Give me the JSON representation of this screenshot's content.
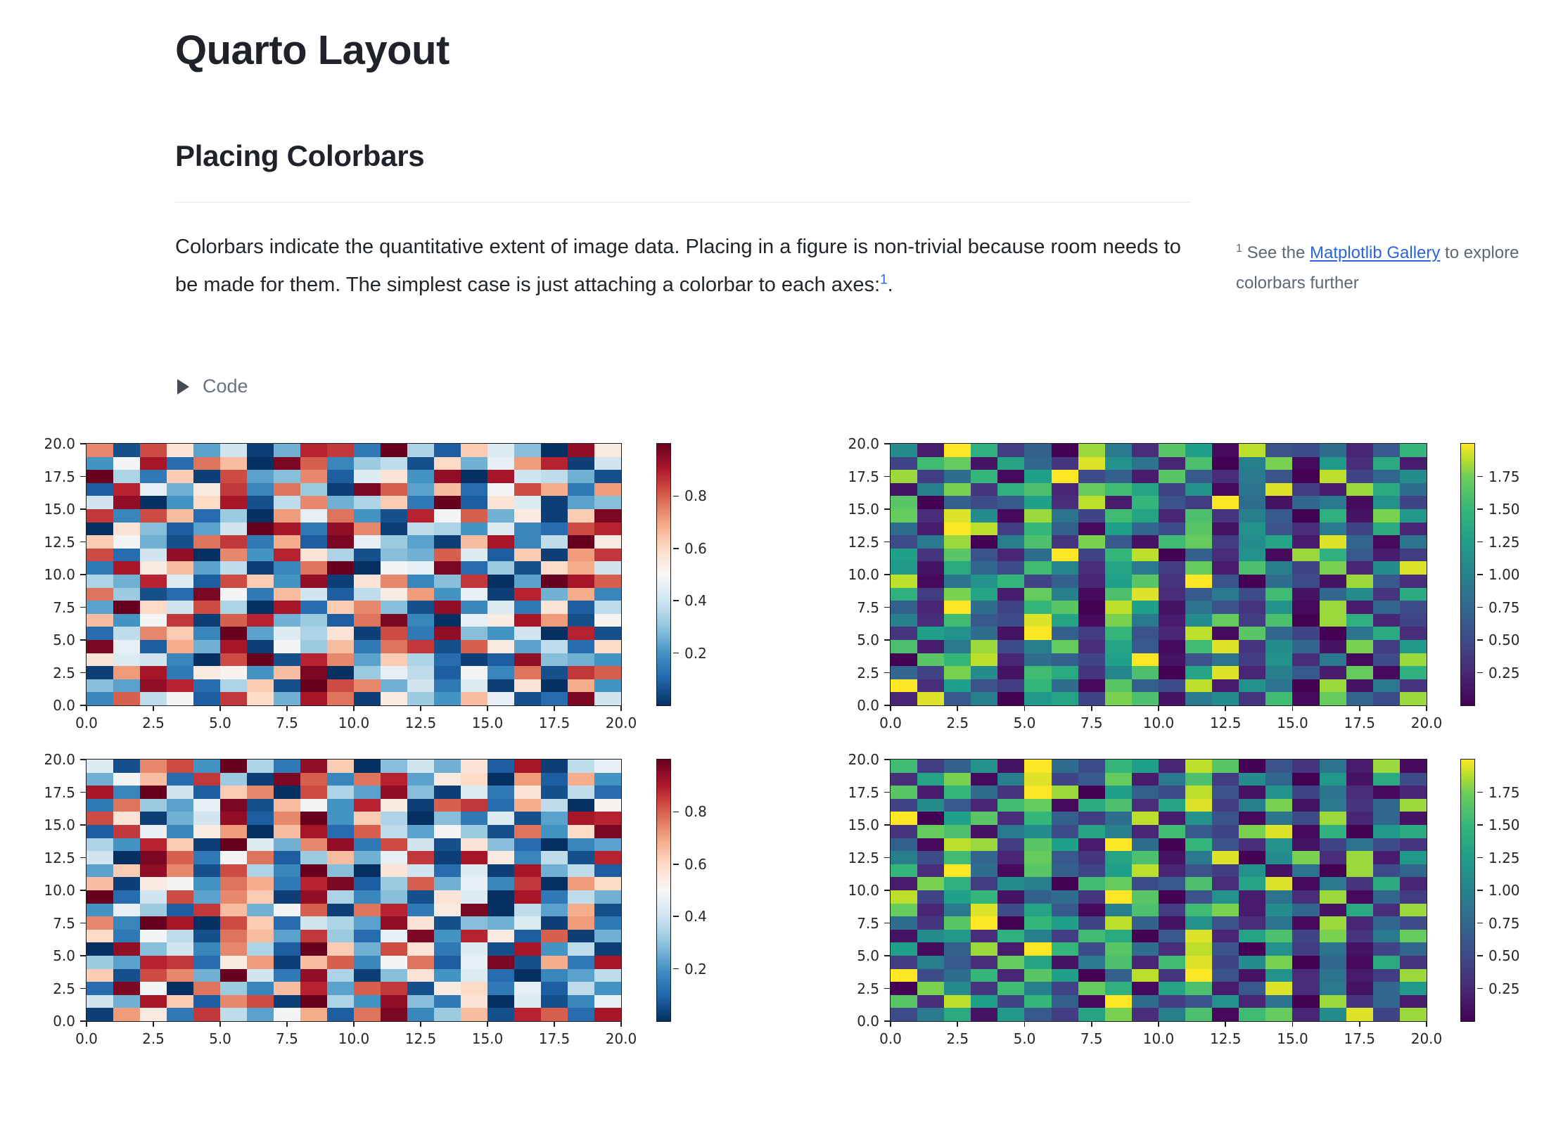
{
  "page": {
    "title": "Quarto Layout",
    "section_heading": "Placing Colorbars"
  },
  "paragraph": {
    "text": "Colorbars indicate the quantitative extent of image data. Placing in a figure is non-trivial because room needs to be made for them. The simplest case is just attaching a colorbar to each axes:",
    "footnote_ref": "1",
    "after_ref": "."
  },
  "margin_note": {
    "ref": "1",
    "text_before_link": " See the ",
    "link_text": "Matplotlib Gallery",
    "text_after_link": " to explore colorbars further"
  },
  "code_fold": {
    "label": "Code",
    "icon": "disclosure-triangle"
  },
  "colors": {
    "link_blue": "#2b65dd",
    "heading_text": "#1f2329",
    "body_text": "#21262b",
    "muted_text": "#5d6873",
    "code_fold_text": "#6a737b",
    "divider": "#e2e6ea",
    "axis_text": "#262626",
    "axis_line": "#1e1e1e"
  },
  "colormaps": {
    "RdBu_r": [
      [
        0,
        "#053061"
      ],
      [
        0.1,
        "#2166ac"
      ],
      [
        0.2,
        "#4393c3"
      ],
      [
        0.3,
        "#92c5de"
      ],
      [
        0.4,
        "#d1e5f0"
      ],
      [
        0.5,
        "#f7f7f7"
      ],
      [
        0.6,
        "#fddbc7"
      ],
      [
        0.7,
        "#f4a582"
      ],
      [
        0.8,
        "#d6604d"
      ],
      [
        0.9,
        "#b2182b"
      ],
      [
        1,
        "#67001f"
      ]
    ],
    "viridis": [
      [
        0,
        "#440154"
      ],
      [
        0.125,
        "#482878"
      ],
      [
        0.25,
        "#3e4a89"
      ],
      [
        0.375,
        "#31688e"
      ],
      [
        0.5,
        "#26828e"
      ],
      [
        0.625,
        "#1f9e89"
      ],
      [
        0.75,
        "#35b779"
      ],
      [
        0.875,
        "#6ece58"
      ],
      [
        0.9375,
        "#b5de2b"
      ],
      [
        1,
        "#fde725"
      ]
    ]
  },
  "chart_data": [
    {
      "type": "heatmap",
      "position": "top-left",
      "cmap": "RdBu_r",
      "grid": [
        20,
        20
      ],
      "xlim": [
        0,
        20
      ],
      "ylim": [
        0,
        20
      ],
      "x_ticks": [
        "0.0",
        "2.5",
        "5.0",
        "7.5",
        "10.0",
        "12.5",
        "15.0",
        "17.5",
        "20.0"
      ],
      "y_ticks": [
        "20.0",
        "17.5",
        "15.0",
        "12.5",
        "10.0",
        "7.5",
        "5.0",
        "2.5",
        "0.0"
      ],
      "value_range": [
        0,
        1
      ],
      "colorbar_tick_values": [
        0.8,
        0.6,
        0.4,
        0.2
      ],
      "colorbar_tick_labels": [
        "0.8",
        "0.6",
        "0.4",
        "0.2"
      ],
      "cell_encoding": "base36: value = parseInt(char,36)/35 * value_range[1]; rows listed top to bottom",
      "rows": [
        "q2tk8e19vu5zc3mfa0xj",
        "7hw4rn0ys6bd2l9gpv1e",
        "zc5m1t8aq3fk7x0wed92",
        "3vg9ju6rb1ys8n4hto5p",
        "ex07lw2dq9cm5z3kf18a",
        "u6tn4b0pgr72vhs9j1my",
        "0ka38ezw5xq1dc7f64tv",
        "mh92ru5o3ygb81nw6dzj",
        "t4ex0q7vkc2a9sf3m1pu",
        "5wjn8d16rz0hgy4b2loe",
        "c9vf3tm7x1kq6au08zws",
        "rb24yh5ne3djp7g1v9o6",
        "8zletc0w4mqa2x6f5k3d",
        "n7hu1sv9b3ry60gjwp2i",
        "4dqm6z8fck1t5xa7e0v2",
        "yg3o9w1hbn5ru2sj8d4l",
        "kfe60tz2vq8mc413xa97",
        "1pw5ji7ny0bgd3h6r2us",
        "a8xv4cm2ztq9e5f1k0o7",
        "6sdh3ul9wr1jb7ng24ye"
      ]
    },
    {
      "type": "heatmap",
      "position": "top-right",
      "cmap": "viridis",
      "grid": [
        20,
        20
      ],
      "xlim": [
        0,
        20
      ],
      "ylim": [
        0,
        20
      ],
      "x_ticks": [
        "0.0",
        "2.5",
        "5.0",
        "7.5",
        "10.0",
        "12.5",
        "15.0",
        "17.5",
        "20.0"
      ],
      "y_ticks": [
        "20.0",
        "17.5",
        "15.0",
        "12.5",
        "10.0",
        "7.5",
        "5.0",
        "2.5",
        "0.0"
      ],
      "value_range": [
        0,
        2
      ],
      "colorbar_tick_values": [
        1.75,
        1.5,
        1.25,
        1.0,
        0.75,
        0.5,
        0.25
      ],
      "colorbar_tick_labels": [
        "1.75",
        "1.50",
        "1.25",
        "1.00",
        "0.75",
        "0.50",
        "0.25"
      ],
      "cell_encoding": "base36: value = parseInt(char,36)/35 * value_range[1]; rows listed top to bottom",
      "rows": [
        "j3zp7c0wg5tm1xa9e4bq",
        "8ru2nd6ykf4s0hv1l5o3",
        "w7eq1mz9c3tb5ga0x8dj",
        "2hv6ps4urn8k1fy73woe",
        "t0c9bm5x3qa7ze2dg1k8",
        "u5yj1wf8rn4s6hb0p2vl",
        "e3zx7qc1md9t2ka5g8o4",
        "9gw0hs6vb2ru7jn3yd1f",
        "m6ta4ez8qx0c5k1wpb37",
        "l2od9ri5ng7u3sh8v4jy",
        "x1fkq8c4mt6za0e92wb5",
        "p7vn3uh1sy5bg9r2dj6o",
        "c4ze8qt0xm2fa6k1w3d9",
        "h5rb9yn1vg3ju7s0wp48",
        "6mke2zc7qa4x1td80fo5",
        "s3gw9hu5nb1ry6jd2v7l",
        "0tqx4ec8mz2af7k5g19w",
        "d8vj2ro6is0ny4hb3u1p",
        "z5ma7qe1tc9x3kf0w2g6",
        "4ybh0ln8vs2gj6r1ud9w"
      ]
    },
    {
      "type": "heatmap",
      "position": "bottom-left",
      "cmap": "RdBu_r",
      "grid": [
        20,
        20
      ],
      "xlim": [
        0,
        20
      ],
      "ylim": [
        0,
        20
      ],
      "x_ticks": [
        "0.0",
        "2.5",
        "5.0",
        "7.5",
        "10.0",
        "12.5",
        "15.0",
        "17.5",
        "20.0"
      ],
      "y_ticks": [
        "20.0",
        "17.5",
        "15.0",
        "12.5",
        "10.0",
        "7.5",
        "5.0",
        "2.5",
        "0.0"
      ],
      "value_range": [
        0,
        1
      ],
      "colorbar_tick_values": [
        0.8,
        0.6,
        0.4,
        0.2
      ],
      "colorbar_tick_labels": [
        "0.8",
        "0.6",
        "0.4",
        "0.2"
      ],
      "cell_encoding": "base36: value = parseInt(char,36)/35 * value_range[1]; rows listed top to bottom",
      "rows": [
        "f2qt7zc5xm0ae9k3w1dg",
        "9hn4ub1ys6rv8jl0p3o7",
        "w6ze3mq0tc8xa1f5k2d4",
        "5rb8gy2nh7vj1su4od0i",
        "tk19ex3qz7mc0a5f28wv",
        "3ug6jp0nw4sd8hb2r7ly",
        "c7vm1zf9qx5te2ka4068",
        "e0ys5hr3bn9gu1wj6d2v",
        "8mxq2tc6za0ke4f1w9d3",
        "n1jh7ro5vy3bs9g6u0pl",
        "z4et8qm1xc6a2kf0w5d9",
        "7gb3un9hs1rv5jy0d8o2",
        "q6zw0tm4ec8xk2a9f1p5",
        "l5hd2rn8ub4gy7vj3s19",
        "0xae6qc3zm9tk5f2w7d1",
        "b8vu4jp1ns6hr3gy2o5w",
        "m2tq9ze5xc1ak7f4068d",
        "4yh0rb6nv8su2jl5g3d7",
        "e9wm3qt1zc7xa5k0f26g",
        "1pj5ud8ho3ry6bn2vs4w"
      ]
    },
    {
      "type": "heatmap",
      "position": "bottom-right",
      "cmap": "viridis",
      "grid": [
        20,
        20
      ],
      "xlim": [
        0,
        20
      ],
      "ylim": [
        0,
        20
      ],
      "x_ticks": [
        "0.0",
        "2.5",
        "5.0",
        "7.5",
        "10.0",
        "12.5",
        "15.0",
        "17.5",
        "20.0"
      ],
      "y_ticks": [
        "20.0",
        "17.5",
        "15.0",
        "12.5",
        "10.0",
        "7.5",
        "5.0",
        "2.5",
        "0.0"
      ],
      "value_range": [
        0,
        2
      ],
      "colorbar_tick_values": [
        1.75,
        1.5,
        1.25,
        1.0,
        0.75,
        0.5,
        0.25
      ],
      "colorbar_tick_labels": [
        "1.75",
        "1.50",
        "1.25",
        "1.00",
        "0.75",
        "0.50",
        "0.25"
      ],
      "cell_encoding": "base36: value = parseInt(char,36)/35 * value_range[1]; rows listed top to bottom",
      "rows": [
        "r7ck2ze9qm4xt0a6f3w1",
        "5nv1hy8bu3gs7jd0l2o9",
        "t3qe6zw0mc9xa2k8f514",
        "8jb4ru1os5ny7hv2g6dw",
        "z0mt5qc7ex3ka1f9w4d2",
        "6us2gj9nh4rb8vy1p0lo",
        "c1xw7tm3ze0qa5k28f96",
        "h9rd4ub6ns2gy0jv5w3l",
        "q5ze1tc8mx4a7k2f0w9d",
        "3vp7jh0ru9bs5ny1g6o4",
        "x8mq2ce6zt0ak3f5w1d7",
        "u4gy9nb1hs7rv3jd2o5w",
        "e6tz0qm8xc2ka5f1w4d9",
        "2jl5ph7ro0by4ns8v6gu",
        "m1cw3zq9te5xa0k7f28d",
        "7hb5un2gs4ry8jv0d1o6",
        "z9eq4tm0cx6za2k5f37w",
        "0vj6rh8up1ns3by5g2dl",
        "t5xm8qc1ze7ak4f0w6d3",
        "9go2lb7nv5hs1ru4jy8w"
      ]
    }
  ]
}
